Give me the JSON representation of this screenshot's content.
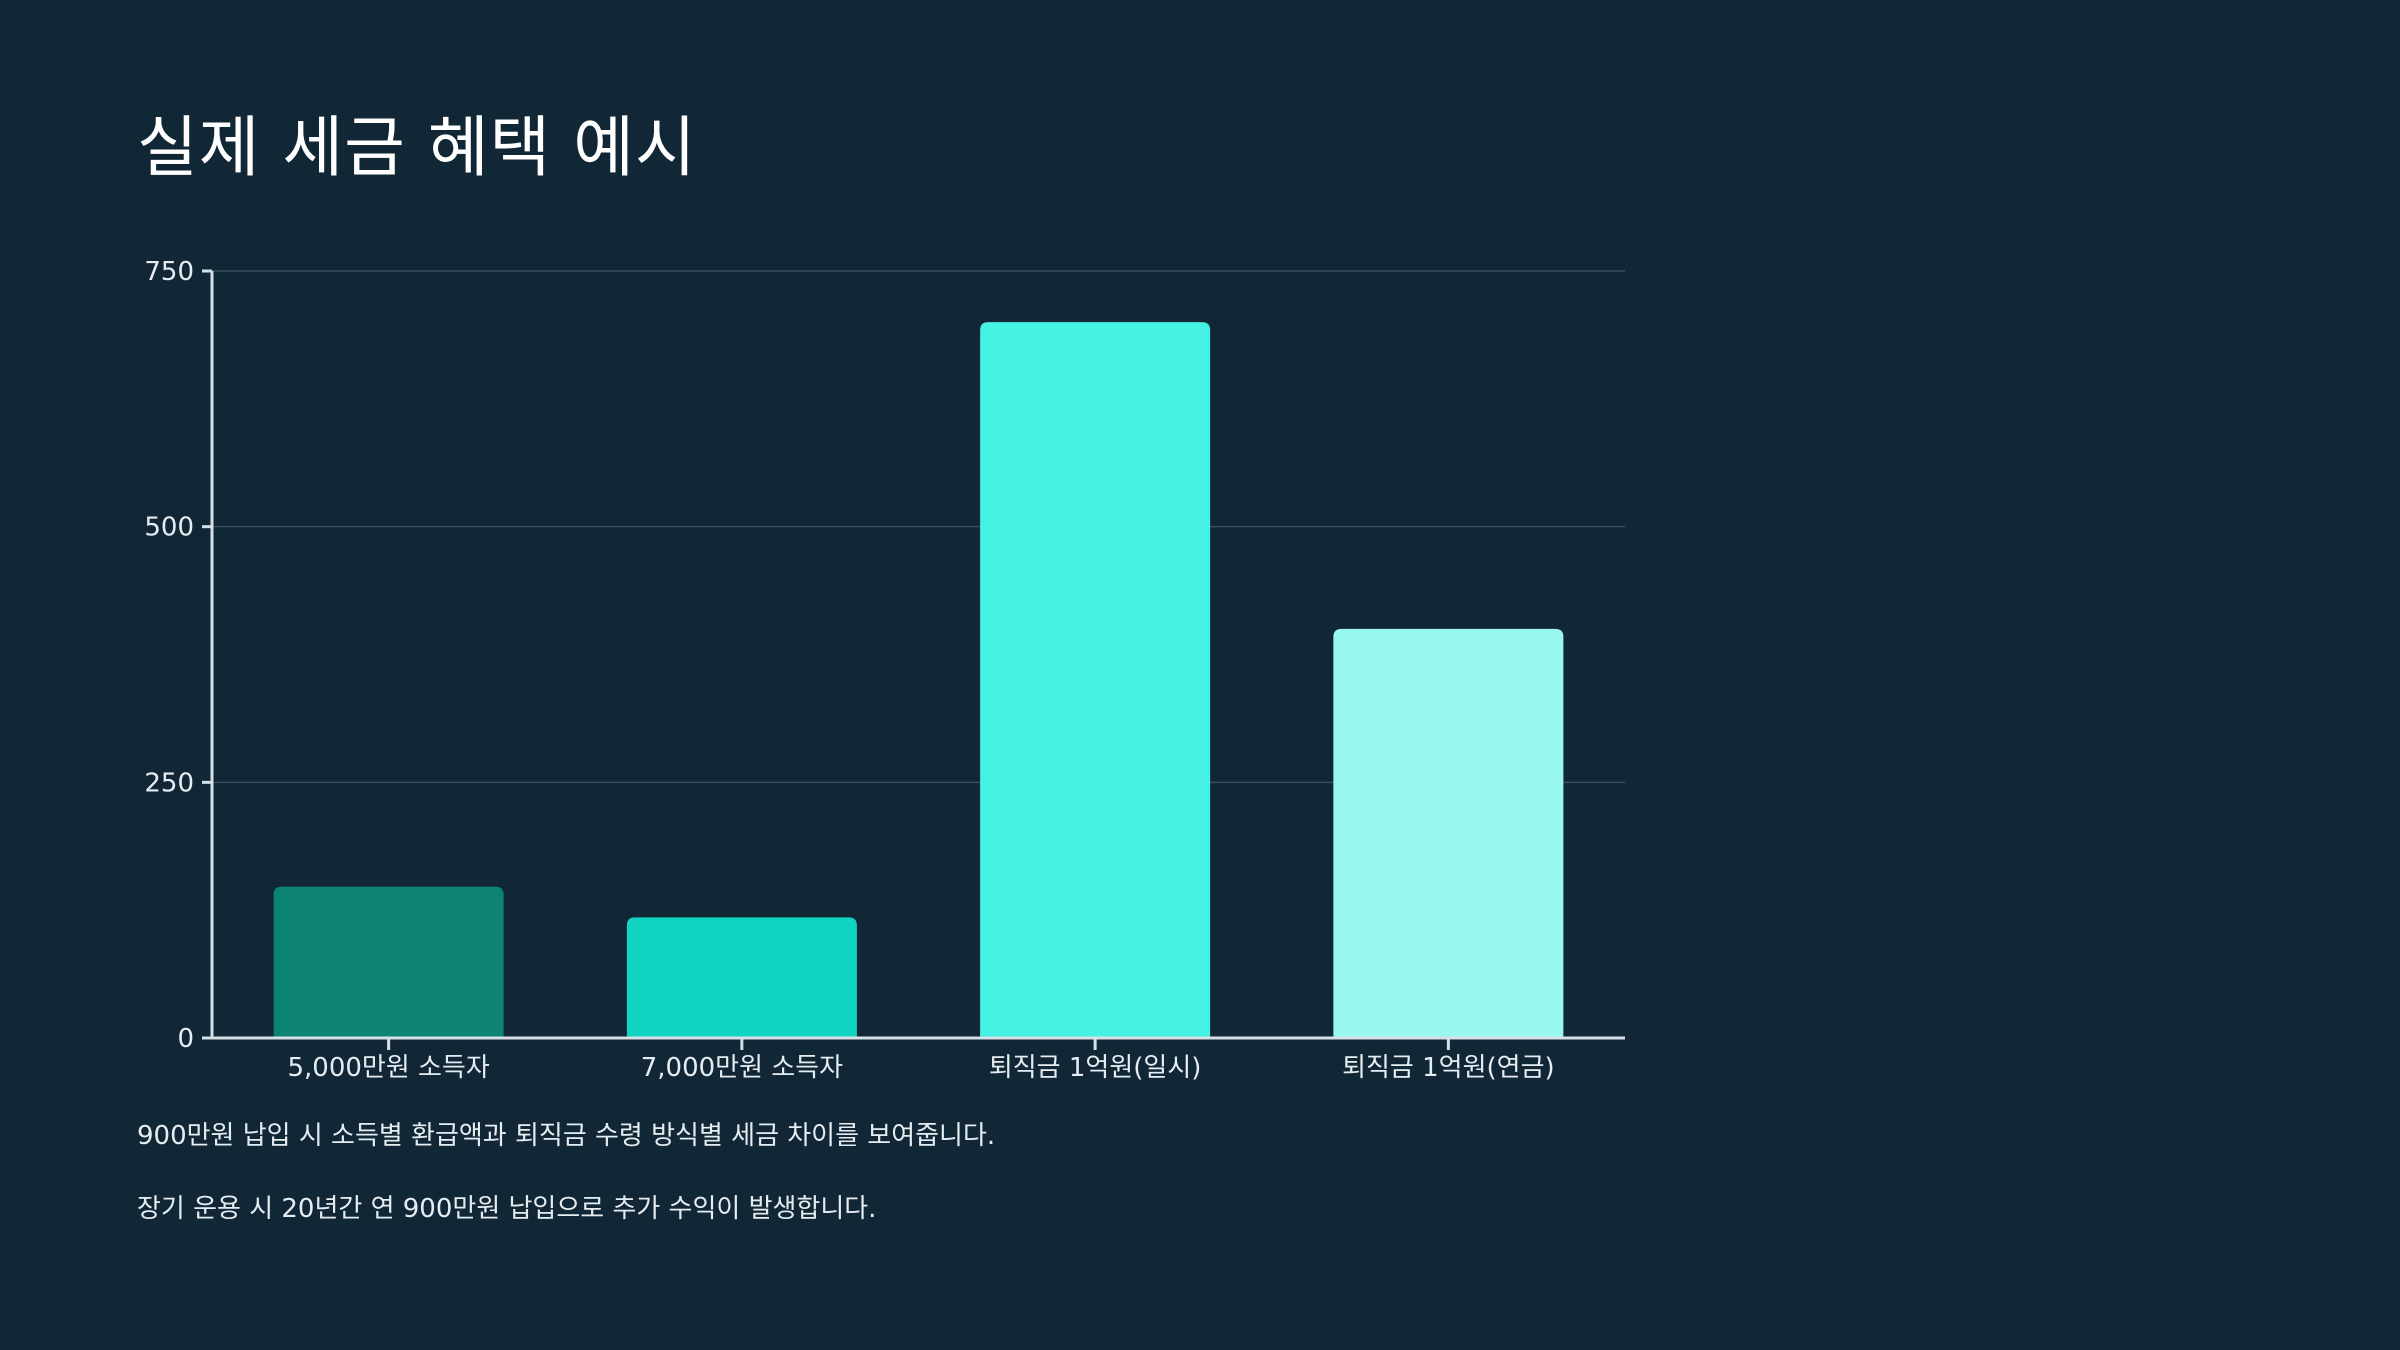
{
  "page": {
    "title": "실제 세금 혜택 예시",
    "background": "#122736",
    "notes": [
      "900만원 납입 시 소득별 환급액과 퇴직금 수령 방식별 세금 차이를 보여줍니다.",
      "장기 운용 시 20년간 연 900만원 납입으로 추가 수익이 발생합니다."
    ]
  },
  "chart_data": {
    "type": "bar",
    "title": "",
    "xlabel": "",
    "ylabel": "",
    "categories": [
      "5,000만원 소득자",
      "7,000만원 소득자",
      "퇴직금 1억원(일시)",
      "퇴직금 1억원(연금)"
    ],
    "values": [
      148,
      118,
      700,
      400
    ],
    "bar_colors": [
      "#0d8375",
      "#10d3c1",
      "#45f2e3",
      "#98f7ee"
    ],
    "ylim": [
      0,
      750
    ],
    "yticks": [
      0,
      250,
      500,
      750
    ],
    "ytick_labels": [
      "0",
      "250",
      "500",
      "750"
    ],
    "grid": true,
    "legend": "none",
    "colors": {
      "axis": "#d6e0e6",
      "grid": "#3a4d5b",
      "tick_text": "#e6edf1"
    }
  }
}
